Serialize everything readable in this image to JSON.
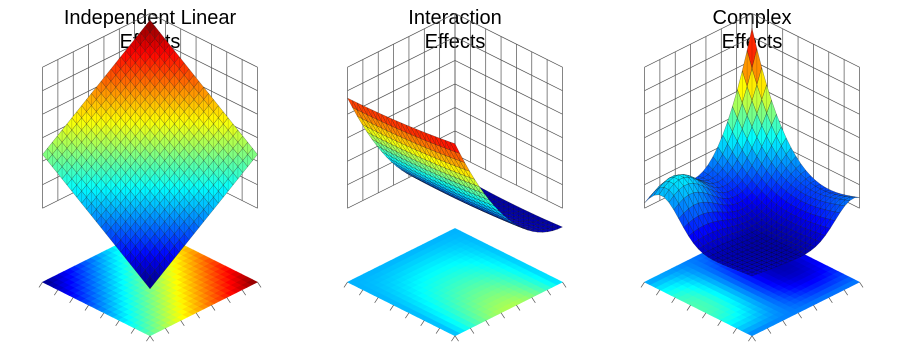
{
  "chart_data": [
    {
      "type": "surface",
      "title_lines": [
        "Independent Linear",
        "Effects"
      ],
      "xlabel": "",
      "ylabel": "",
      "zlabel": "",
      "grid": true,
      "colormap": "jet",
      "floor_contour": true,
      "surface": "z = x + y",
      "z_range": [
        0,
        2
      ]
    },
    {
      "type": "surface",
      "title_lines": [
        "Interaction",
        "Effects"
      ],
      "xlabel": "",
      "ylabel": "",
      "zlabel": "",
      "grid": true,
      "colormap": "jet",
      "floor_contour": true,
      "surface": "z = (x*y)^2 (saddle-like curved sheet)",
      "z_range": [
        0,
        1
      ]
    },
    {
      "type": "surface",
      "title_lines": [
        "Complex",
        "Effects"
      ],
      "xlabel": "",
      "ylabel": "",
      "zlabel": "",
      "grid": true,
      "colormap": "jet",
      "floor_contour": true,
      "surface": "z = peak at far corner with valley and ridge",
      "z_range": [
        0,
        1
      ]
    }
  ]
}
